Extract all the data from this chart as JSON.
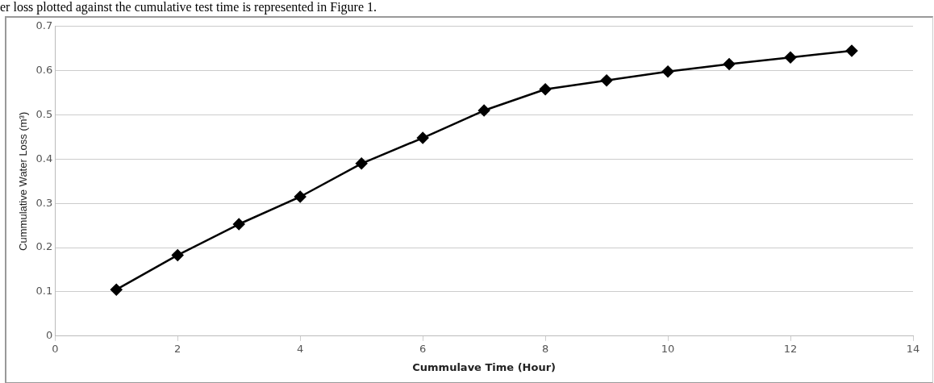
{
  "chart_data": {
    "type": "line",
    "annotations": [
      "er loss plotted against the cumulative test time is represented in Figure 1."
    ],
    "xlabel": "Cummulave Time (Hour)",
    "ylabel": "Cummulative Water Loss (m³)",
    "x": [
      1,
      2,
      3,
      4,
      5,
      6,
      7,
      8,
      9,
      10,
      11,
      12,
      13
    ],
    "series": [
      {
        "color": "#000000",
        "values": [
          0.105,
          0.183,
          0.253,
          0.315,
          0.39,
          0.448,
          0.51,
          0.558,
          0.578,
          0.598,
          0.615,
          0.63,
          0.645
        ]
      }
    ],
    "xlim": [
      0,
      14
    ],
    "xticks": [
      0,
      2,
      4,
      6,
      8,
      10,
      12,
      14
    ],
    "ylim": [
      0,
      0.7
    ],
    "yticks": [
      0,
      0.1,
      0.2,
      0.3,
      0.4,
      0.5,
      0.6,
      0.7
    ],
    "grid": "y",
    "legend": false,
    "marker": "diamond",
    "line_style": "solid"
  }
}
